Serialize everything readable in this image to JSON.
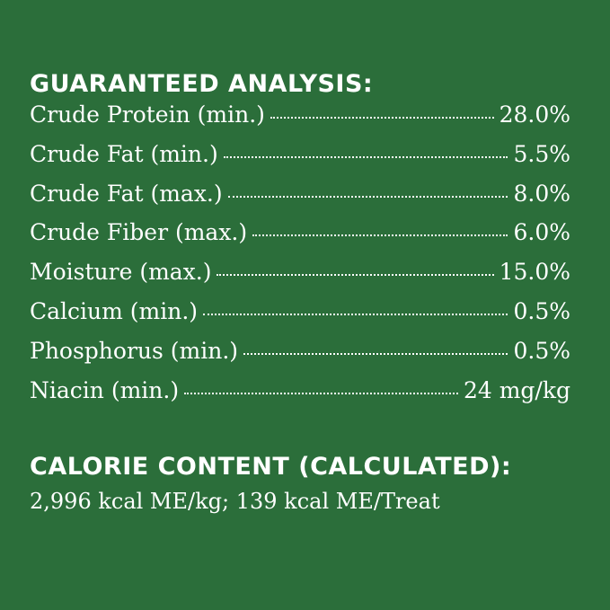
{
  "analysis": {
    "title": "GUARANTEED ANALYSIS:",
    "rows": [
      {
        "label": "Crude Protein (min.)",
        "value": "28.0%"
      },
      {
        "label": "Crude Fat (min.)",
        "value": "5.5%"
      },
      {
        "label": "Crude Fat (max.)",
        "value": "8.0%"
      },
      {
        "label": "Crude Fiber (max.)",
        "value": "6.0%"
      },
      {
        "label": "Moisture (max.)",
        "value": "15.0%"
      },
      {
        "label": "Calcium (min.)",
        "value": "0.5%"
      },
      {
        "label": "Phosphorus (min.)",
        "value": "0.5%"
      },
      {
        "label": "Niacin (min.)",
        "value": "24 mg/kg"
      }
    ]
  },
  "calorie": {
    "title": "CALORIE CONTENT (CALCULATED):",
    "text": "2,996 kcal ME/kg; 139 kcal ME/Treat"
  },
  "colors": {
    "background": "#2b6e3a",
    "text": "#ffffff"
  }
}
